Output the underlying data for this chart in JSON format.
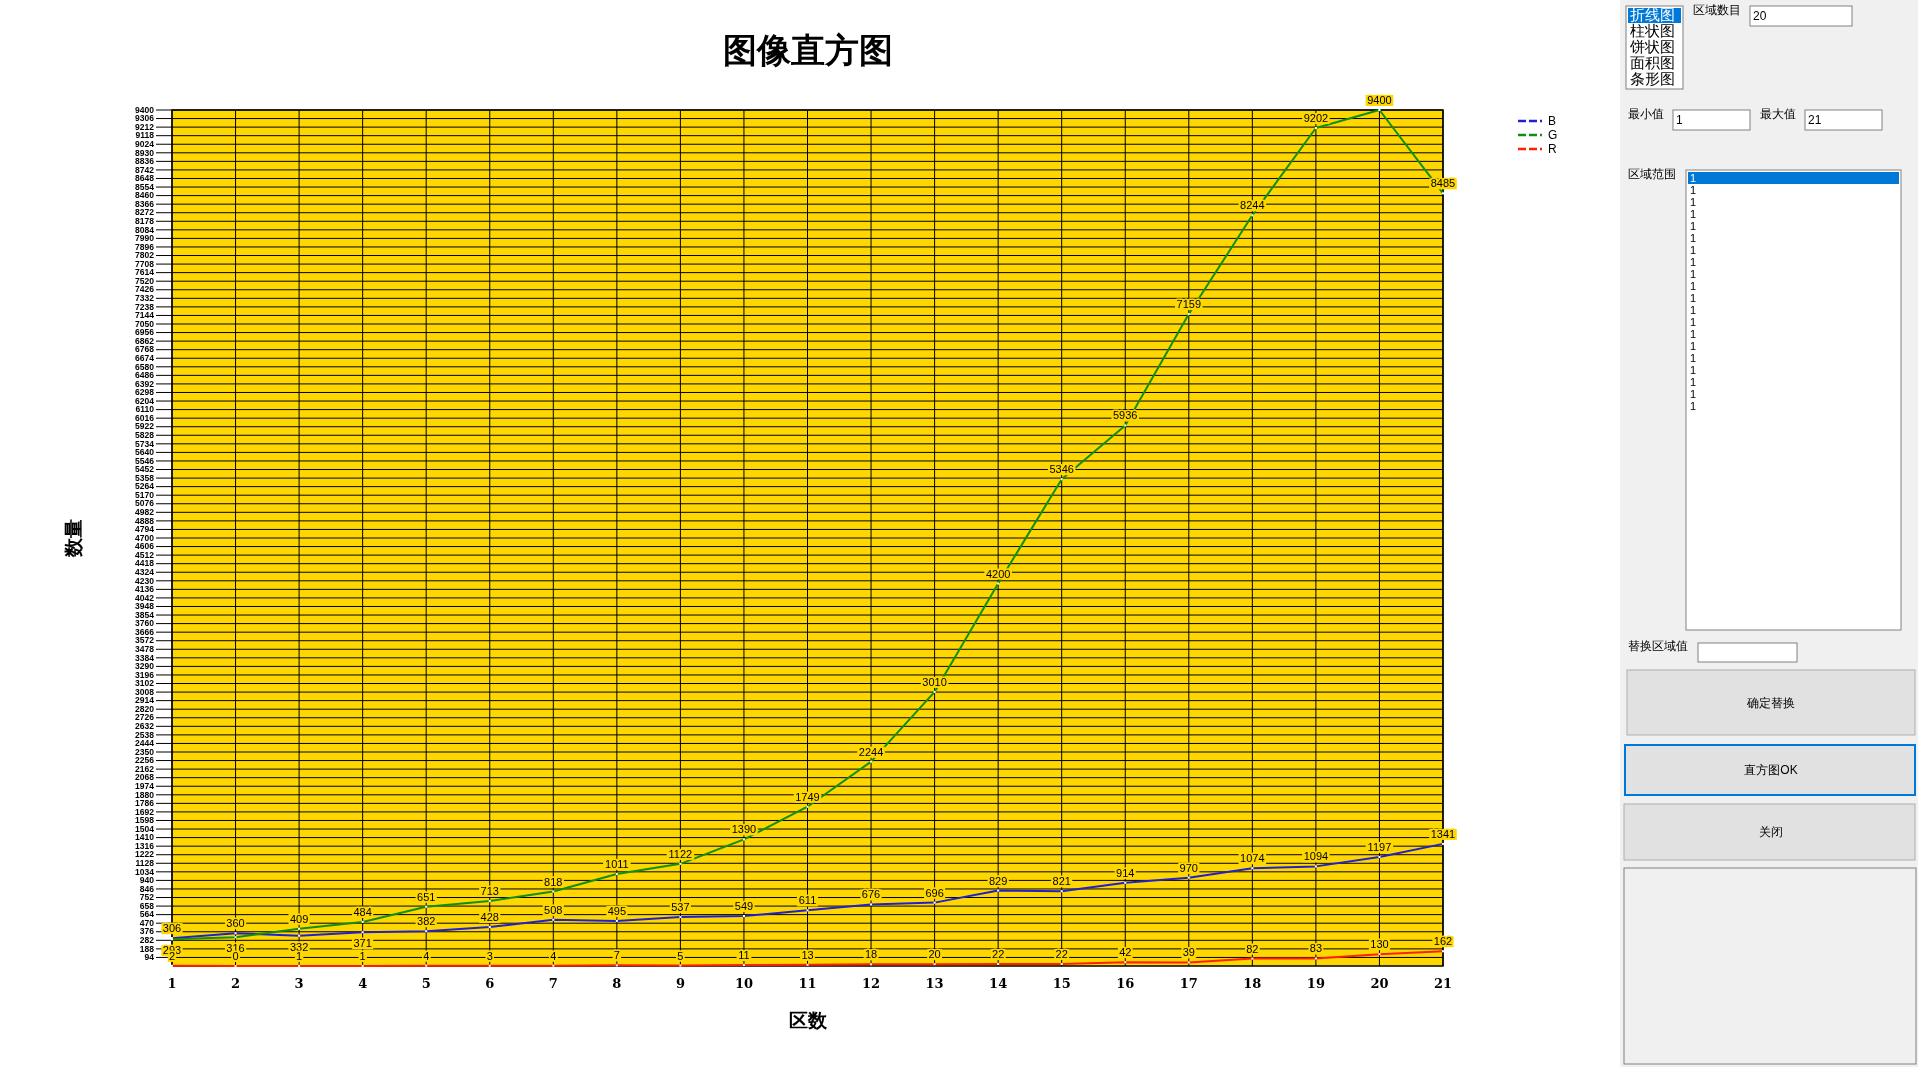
{
  "chart_data": [
    {
      "type": "line",
      "title": "图像直方图",
      "xlabel": "区数",
      "ylabel": "数量",
      "x": [
        1,
        2,
        3,
        4,
        5,
        6,
        7,
        8,
        9,
        10,
        11,
        12,
        13,
        14,
        15,
        16,
        17,
        18,
        19,
        20,
        21
      ],
      "series": [
        {
          "name": "B",
          "color": "#2020d0",
          "values": [
            306,
            360,
            332,
            371,
            382,
            428,
            508,
            495,
            537,
            549,
            611,
            676,
            696,
            829,
            821,
            914,
            970,
            1074,
            1094,
            1197,
            1341
          ]
        },
        {
          "name": "G",
          "color": "#109010",
          "values": [
            293,
            316,
            409,
            484,
            651,
            713,
            818,
            1011,
            1122,
            1390,
            1749,
            2244,
            3010,
            4200,
            5346,
            5936,
            7159,
            8244,
            9202,
            9400,
            8485
          ]
        },
        {
          "name": "R",
          "color": "#ff2000",
          "values": [
            2,
            0,
            1,
            1,
            4,
            3,
            4,
            7,
            5,
            11,
            13,
            18,
            20,
            22,
            22,
            42,
            39,
            82,
            83,
            130,
            162
          ]
        }
      ],
      "xlim": [
        1,
        21
      ],
      "xticks": [
        1,
        2,
        3,
        4,
        5,
        6,
        7,
        8,
        9,
        10,
        11,
        12,
        13,
        14,
        15,
        16,
        17,
        18,
        19,
        20,
        21
      ],
      "ylim": [
        0,
        9400
      ],
      "yticks": [
        94,
        188,
        282,
        376,
        470,
        564,
        658,
        752,
        846,
        940,
        1034,
        1128,
        1222,
        1316,
        1410,
        1504,
        1598,
        1692,
        1786,
        1880,
        1974,
        2068,
        2162,
        2256,
        2350,
        2444,
        2538,
        2632,
        2726,
        2820,
        2914,
        3008,
        3102,
        3196,
        3290,
        3384,
        3478,
        3572,
        3666,
        3760,
        3854,
        3948,
        4042,
        4136,
        4230,
        4324,
        4418,
        4512,
        4606,
        4700,
        4794,
        4888,
        4982,
        5076,
        5170,
        5264,
        5358,
        5452,
        5546,
        5640,
        5734,
        5828,
        5922,
        6016,
        6110,
        6204,
        6298,
        6392,
        6486,
        6580,
        6674,
        6768,
        6862,
        6956,
        7050,
        7144,
        7238,
        7332,
        7426,
        7520,
        7614,
        7708,
        7802,
        7896,
        7990,
        8084,
        8178,
        8272,
        8366,
        8460,
        8554,
        8648,
        8742,
        8836,
        8930,
        9024,
        9118,
        9212,
        9306,
        9400
      ],
      "grid": true,
      "legend": "top right",
      "marker": "square",
      "line_style": "solid",
      "data_labels": true
    },
    {
      "type": "other",
      "annotations": [
        "折线图",
        "柱状图",
        "饼状图",
        "面积图",
        "条形图",
        "区域数目",
        "20",
        "最小值",
        "1",
        "最大值",
        "21",
        "区域范围",
        "1",
        "1",
        "1",
        "1",
        "1",
        "1",
        "1",
        "1",
        "1",
        "1",
        "1",
        "1",
        "1",
        "1",
        "1",
        "1",
        "1",
        "1",
        "1",
        "1",
        "替换区域值",
        "确定替换",
        "直方图OK",
        "关闭"
      ]
    }
  ]
}
